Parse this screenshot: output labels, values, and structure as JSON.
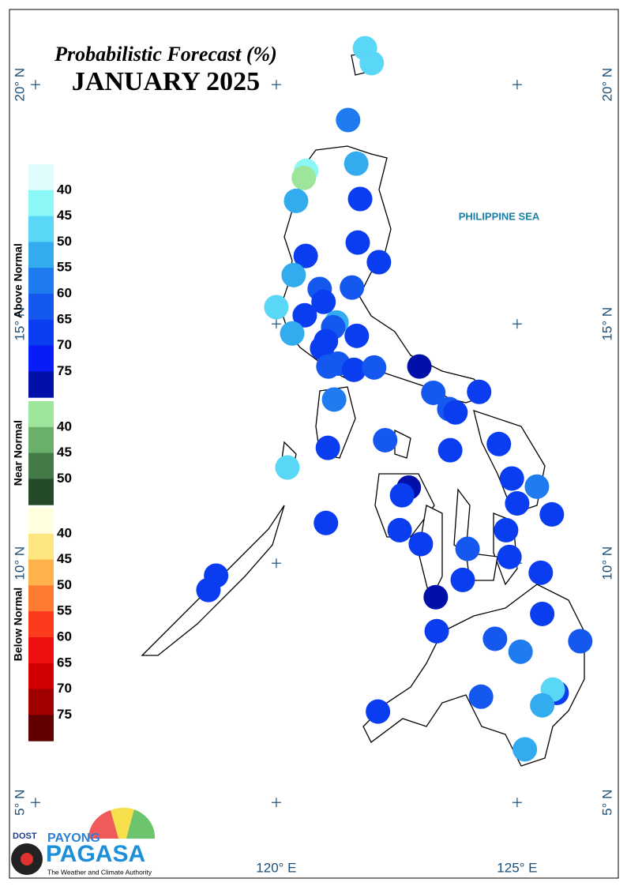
{
  "map": {
    "title": "Probabilistic Forecast (%)",
    "subtitle": "JANUARY 2025",
    "ocean_label": "PHILIPPINE SEA",
    "xlim": [
      114.46,
      127.1
    ],
    "ylim": [
      3.42,
      21.57
    ],
    "grid_lons": [
      115,
      120,
      125
    ],
    "grid_lats": [
      5,
      10,
      15,
      20
    ],
    "xticks": [
      {
        "value": 120,
        "label": "120° E"
      },
      {
        "value": 125,
        "label": "125° E"
      }
    ],
    "yticks": [
      {
        "value": 5,
        "label": "5° N"
      },
      {
        "value": 10,
        "label": "10° N"
      },
      {
        "value": 15,
        "label": "15° N"
      },
      {
        "value": 20,
        "label": "20° N"
      }
    ],
    "legend": [
      {
        "title": "Above Normal",
        "colors": [
          "#e0fdfd",
          "#8cf7f7",
          "#5ad6f6",
          "#33abef",
          "#1e7cf0",
          "#1458f0",
          "#0a3cf0",
          "#0a1cf5",
          "#0010a8"
        ],
        "labels": [
          40,
          45,
          50,
          55,
          60,
          65,
          70,
          75
        ]
      },
      {
        "title": "Near Normal",
        "colors": [
          "#9ce59a",
          "#6bb06a",
          "#437a48",
          "#254a2a"
        ],
        "labels": [
          40,
          45,
          50
        ]
      },
      {
        "title": "Below Normal",
        "colors": [
          "#fffedd",
          "#fee680",
          "#feb24c",
          "#fd7a30",
          "#fc3a1e",
          "#ee0f0f",
          "#d00000",
          "#a00000",
          "#600000"
        ],
        "labels": [
          40,
          45,
          50,
          55,
          60,
          65,
          70,
          75
        ]
      }
    ],
    "points": [
      {
        "lon": 121.84,
        "lat": 20.76,
        "color": "#5ad6f6"
      },
      {
        "lon": 121.98,
        "lat": 20.45,
        "color": "#5ad6f6"
      },
      {
        "lon": 121.49,
        "lat": 19.26,
        "color": "#1e7cf0"
      },
      {
        "lon": 121.66,
        "lat": 18.35,
        "color": "#33abef"
      },
      {
        "lon": 120.62,
        "lat": 18.2,
        "color": "#8cf7f7"
      },
      {
        "lon": 120.57,
        "lat": 18.05,
        "color": "#9ce59a"
      },
      {
        "lon": 121.74,
        "lat": 17.61,
        "color": "#0a3cf0"
      },
      {
        "lon": 120.41,
        "lat": 17.57,
        "color": "#33abef"
      },
      {
        "lon": 121.69,
        "lat": 16.7,
        "color": "#0a3cf0"
      },
      {
        "lon": 120.61,
        "lat": 16.42,
        "color": "#0a3cf0"
      },
      {
        "lon": 122.13,
        "lat": 16.29,
        "color": "#0a3cf0"
      },
      {
        "lon": 120.36,
        "lat": 16.02,
        "color": "#33abef"
      },
      {
        "lon": 121.57,
        "lat": 15.76,
        "color": "#1458f0"
      },
      {
        "lon": 120.9,
        "lat": 15.73,
        "color": "#1458f0"
      },
      {
        "lon": 120.98,
        "lat": 15.46,
        "color": "#0a3cf0"
      },
      {
        "lon": 120.0,
        "lat": 15.35,
        "color": "#5ad6f6"
      },
      {
        "lon": 120.59,
        "lat": 15.18,
        "color": "#0a3cf0"
      },
      {
        "lon": 121.25,
        "lat": 15.03,
        "color": "#33abef"
      },
      {
        "lon": 121.18,
        "lat": 14.93,
        "color": "#1458f0"
      },
      {
        "lon": 120.33,
        "lat": 14.8,
        "color": "#33abef"
      },
      {
        "lon": 121.67,
        "lat": 14.75,
        "color": "#0a3cf0"
      },
      {
        "lon": 121.03,
        "lat": 14.64,
        "color": "#0a3cf0"
      },
      {
        "lon": 120.95,
        "lat": 14.49,
        "color": "#0a3cf0"
      },
      {
        "lon": 121.28,
        "lat": 14.17,
        "color": "#1458f0"
      },
      {
        "lon": 121.08,
        "lat": 14.11,
        "color": "#1458f0"
      },
      {
        "lon": 121.61,
        "lat": 14.04,
        "color": "#0a3cf0"
      },
      {
        "lon": 122.03,
        "lat": 14.09,
        "color": "#1458f0"
      },
      {
        "lon": 122.97,
        "lat": 14.11,
        "color": "#0010a8"
      },
      {
        "lon": 123.26,
        "lat": 13.56,
        "color": "#1458f0"
      },
      {
        "lon": 124.21,
        "lat": 13.58,
        "color": "#0a3cf0"
      },
      {
        "lon": 121.2,
        "lat": 13.42,
        "color": "#1e7cf0"
      },
      {
        "lon": 123.59,
        "lat": 13.22,
        "color": "#1458f0"
      },
      {
        "lon": 123.72,
        "lat": 13.15,
        "color": "#0a3cf0"
      },
      {
        "lon": 122.26,
        "lat": 12.57,
        "color": "#1458f0"
      },
      {
        "lon": 124.62,
        "lat": 12.49,
        "color": "#0a3cf0"
      },
      {
        "lon": 121.07,
        "lat": 12.41,
        "color": "#0a3cf0"
      },
      {
        "lon": 123.61,
        "lat": 12.36,
        "color": "#0a3cf0"
      },
      {
        "lon": 120.23,
        "lat": 12.0,
        "color": "#5ad6f6"
      },
      {
        "lon": 124.89,
        "lat": 11.77,
        "color": "#0a3cf0"
      },
      {
        "lon": 125.41,
        "lat": 11.6,
        "color": "#1e7cf0"
      },
      {
        "lon": 122.75,
        "lat": 11.58,
        "color": "#0010a8"
      },
      {
        "lon": 122.61,
        "lat": 11.42,
        "color": "#0a3cf0"
      },
      {
        "lon": 125.0,
        "lat": 11.25,
        "color": "#0a3cf0"
      },
      {
        "lon": 125.72,
        "lat": 11.02,
        "color": "#0a3cf0"
      },
      {
        "lon": 121.03,
        "lat": 10.84,
        "color": "#0a3cf0"
      },
      {
        "lon": 122.56,
        "lat": 10.69,
        "color": "#0a3cf0"
      },
      {
        "lon": 124.77,
        "lat": 10.69,
        "color": "#0a3cf0"
      },
      {
        "lon": 123.0,
        "lat": 10.4,
        "color": "#0a3cf0"
      },
      {
        "lon": 123.97,
        "lat": 10.3,
        "color": "#1458f0"
      },
      {
        "lon": 124.84,
        "lat": 10.13,
        "color": "#0a3cf0"
      },
      {
        "lon": 118.75,
        "lat": 9.74,
        "color": "#0a3cf0"
      },
      {
        "lon": 118.59,
        "lat": 9.44,
        "color": "#0a3cf0"
      },
      {
        "lon": 123.87,
        "lat": 9.65,
        "color": "#0a3cf0"
      },
      {
        "lon": 125.49,
        "lat": 9.8,
        "color": "#0a3cf0"
      },
      {
        "lon": 123.31,
        "lat": 9.29,
        "color": "#0010a8"
      },
      {
        "lon": 125.52,
        "lat": 8.94,
        "color": "#0a3cf0"
      },
      {
        "lon": 123.33,
        "lat": 8.58,
        "color": "#0a3cf0"
      },
      {
        "lon": 124.54,
        "lat": 8.42,
        "color": "#1458f0"
      },
      {
        "lon": 126.31,
        "lat": 8.37,
        "color": "#1458f0"
      },
      {
        "lon": 125.07,
        "lat": 8.15,
        "color": "#1e7cf0"
      },
      {
        "lon": 124.25,
        "lat": 7.21,
        "color": "#1458f0"
      },
      {
        "lon": 125.82,
        "lat": 7.29,
        "color": "#0a3cf0"
      },
      {
        "lon": 125.74,
        "lat": 7.36,
        "color": "#5ad6f6"
      },
      {
        "lon": 125.52,
        "lat": 7.03,
        "color": "#33abef"
      },
      {
        "lon": 122.11,
        "lat": 6.9,
        "color": "#0a3cf0"
      },
      {
        "lon": 125.16,
        "lat": 6.11,
        "color": "#33abef"
      }
    ],
    "logo": {
      "agency": "DOST",
      "program": "PAYONG",
      "name": "PAGASA",
      "tagline": "The Weather and Climate Authority"
    }
  }
}
